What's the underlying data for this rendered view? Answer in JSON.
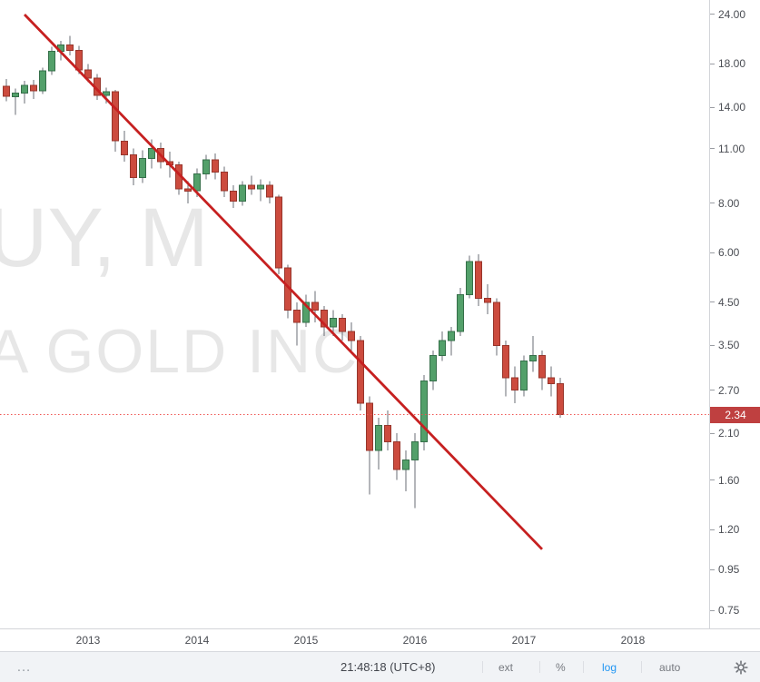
{
  "watermark": {
    "line1": "UY, M",
    "line2": "A GOLD INC"
  },
  "price_axis": {
    "ticks": [
      {
        "label": "24.00",
        "value": 24
      },
      {
        "label": "18.00",
        "value": 18
      },
      {
        "label": "14.00",
        "value": 14
      },
      {
        "label": "11.00",
        "value": 11
      },
      {
        "label": "8.00",
        "value": 8
      },
      {
        "label": "6.00",
        "value": 6
      },
      {
        "label": "4.50",
        "value": 4.5
      },
      {
        "label": "3.50",
        "value": 3.5
      },
      {
        "label": "2.70",
        "value": 2.7
      },
      {
        "label": "2.10",
        "value": 2.1
      },
      {
        "label": "1.60",
        "value": 1.6
      },
      {
        "label": "1.20",
        "value": 1.2
      },
      {
        "label": "0.95",
        "value": 0.95
      },
      {
        "label": "0.75",
        "value": 0.75
      }
    ],
    "last_price": {
      "label": "2.34",
      "value": 2.34
    }
  },
  "time_axis": {
    "labels": [
      {
        "label": "2013",
        "t": "2013-01"
      },
      {
        "label": "2014",
        "t": "2014-01"
      },
      {
        "label": "2015",
        "t": "2015-01"
      },
      {
        "label": "2016",
        "t": "2016-01"
      },
      {
        "label": "2017",
        "t": "2017-01"
      },
      {
        "label": "2018",
        "t": "2018-01"
      }
    ]
  },
  "toolbar": {
    "overflow": "…",
    "clock": "21:48:18 (UTC+8)",
    "ext": "ext",
    "percent": "%",
    "log": "log",
    "auto": "auto",
    "active_scale": "log"
  },
  "colors": {
    "up": "#53a06a",
    "up_border": "#356f49",
    "down": "#cc4b3e",
    "down_border": "#97352b",
    "wick": "#6a6d74",
    "trend": "#c62020",
    "price_line": "#ef5350",
    "tag_bg": "#bf4040",
    "watermark": "#e7e7e7",
    "accent_blue": "#2196f3"
  },
  "chart_data": {
    "type": "candlestick",
    "timeframe": "monthly",
    "scale": "log",
    "ylim": [
      0.7,
      25
    ],
    "y_ticks": [
      24,
      18,
      14,
      11,
      8,
      6,
      4.5,
      3.5,
      2.7,
      2.1,
      1.6,
      1.2,
      0.95,
      0.75
    ],
    "x_labels": [
      "2013",
      "2014",
      "2015",
      "2016",
      "2017",
      "2018"
    ],
    "price_line": 2.34,
    "last_close": 2.34,
    "trendline": {
      "t1": "2012-06",
      "p1": 24.0,
      "t2": "2017-03",
      "p2": 1.07
    },
    "candle_format": [
      "month",
      "open",
      "high",
      "low",
      "close"
    ],
    "candles": [
      [
        "2012-04",
        15.8,
        16.5,
        14.5,
        14.9
      ],
      [
        "2012-05",
        14.9,
        15.6,
        13.4,
        15.2
      ],
      [
        "2012-06",
        15.2,
        16.3,
        14.3,
        15.9
      ],
      [
        "2012-07",
        15.9,
        16.4,
        14.7,
        15.4
      ],
      [
        "2012-08",
        15.4,
        17.6,
        15.1,
        17.3
      ],
      [
        "2012-09",
        17.3,
        19.9,
        16.9,
        19.4
      ],
      [
        "2012-10",
        19.4,
        20.6,
        18.4,
        20.1
      ],
      [
        "2012-11",
        20.1,
        21.2,
        18.9,
        19.5
      ],
      [
        "2012-12",
        19.5,
        20.0,
        17.0,
        17.4
      ],
      [
        "2013-01",
        17.4,
        18.0,
        16.2,
        16.6
      ],
      [
        "2013-02",
        16.6,
        17.0,
        14.6,
        15.0
      ],
      [
        "2013-03",
        15.0,
        15.7,
        14.3,
        15.3
      ],
      [
        "2013-04",
        15.3,
        15.5,
        10.8,
        11.5
      ],
      [
        "2013-05",
        11.5,
        12.2,
        10.2,
        10.6
      ],
      [
        "2013-06",
        10.6,
        11.0,
        8.9,
        9.3
      ],
      [
        "2013-07",
        9.3,
        10.9,
        9.0,
        10.4
      ],
      [
        "2013-08",
        10.4,
        11.6,
        9.8,
        11.0
      ],
      [
        "2013-09",
        11.0,
        11.4,
        9.8,
        10.2
      ],
      [
        "2013-10",
        10.2,
        10.8,
        9.3,
        10.0
      ],
      [
        "2013-11",
        10.0,
        10.2,
        8.4,
        8.7
      ],
      [
        "2013-12",
        8.7,
        9.1,
        8.0,
        8.6
      ],
      [
        "2014-01",
        8.6,
        9.8,
        8.3,
        9.5
      ],
      [
        "2014-02",
        9.5,
        10.6,
        9.2,
        10.3
      ],
      [
        "2014-03",
        10.3,
        10.7,
        9.2,
        9.6
      ],
      [
        "2014-04",
        9.6,
        9.9,
        8.3,
        8.6
      ],
      [
        "2014-05",
        8.6,
        8.9,
        7.8,
        8.1
      ],
      [
        "2014-06",
        8.1,
        9.1,
        7.9,
        8.9
      ],
      [
        "2014-07",
        8.9,
        9.4,
        8.4,
        8.7
      ],
      [
        "2014-08",
        8.7,
        9.2,
        8.1,
        8.9
      ],
      [
        "2014-09",
        8.9,
        9.1,
        8.0,
        8.3
      ],
      [
        "2014-10",
        8.3,
        8.4,
        5.3,
        5.5
      ],
      [
        "2014-11",
        5.5,
        5.6,
        4.1,
        4.3
      ],
      [
        "2014-12",
        4.3,
        4.5,
        3.5,
        4.0
      ],
      [
        "2015-01",
        4.0,
        4.7,
        3.9,
        4.5
      ],
      [
        "2015-02",
        4.5,
        4.8,
        4.0,
        4.3
      ],
      [
        "2015-03",
        4.3,
        4.4,
        3.7,
        3.9
      ],
      [
        "2015-04",
        3.9,
        4.3,
        3.7,
        4.1
      ],
      [
        "2015-05",
        4.1,
        4.2,
        3.6,
        3.8
      ],
      [
        "2015-06",
        3.8,
        4.0,
        3.4,
        3.6
      ],
      [
        "2015-07",
        3.6,
        3.7,
        2.4,
        2.5
      ],
      [
        "2015-08",
        2.5,
        2.6,
        1.47,
        1.9
      ],
      [
        "2015-09",
        1.9,
        2.3,
        1.7,
        2.2
      ],
      [
        "2015-10",
        2.2,
        2.4,
        1.9,
        2.0
      ],
      [
        "2015-11",
        2.0,
        2.1,
        1.6,
        1.7
      ],
      [
        "2015-12",
        1.7,
        1.9,
        1.5,
        1.8
      ],
      [
        "2016-01",
        1.8,
        2.1,
        1.36,
        2.0
      ],
      [
        "2016-02",
        2.0,
        2.95,
        1.9,
        2.85
      ],
      [
        "2016-03",
        2.85,
        3.4,
        2.7,
        3.3
      ],
      [
        "2016-04",
        3.3,
        3.8,
        3.2,
        3.6
      ],
      [
        "2016-05",
        3.6,
        3.9,
        3.3,
        3.8
      ],
      [
        "2016-06",
        3.8,
        4.9,
        3.7,
        4.7
      ],
      [
        "2016-07",
        4.7,
        5.9,
        4.6,
        5.7
      ],
      [
        "2016-08",
        5.7,
        5.95,
        4.4,
        4.6
      ],
      [
        "2016-09",
        4.6,
        5.0,
        4.2,
        4.5
      ],
      [
        "2016-10",
        4.5,
        4.6,
        3.3,
        3.5
      ],
      [
        "2016-11",
        3.5,
        3.6,
        2.6,
        2.9
      ],
      [
        "2016-12",
        2.9,
        3.1,
        2.5,
        2.7
      ],
      [
        "2017-01",
        2.7,
        3.3,
        2.6,
        3.2
      ],
      [
        "2017-02",
        3.2,
        3.7,
        3.0,
        3.3
      ],
      [
        "2017-03",
        3.3,
        3.4,
        2.7,
        2.9
      ],
      [
        "2017-04",
        2.9,
        3.1,
        2.6,
        2.8
      ],
      [
        "2017-05",
        2.8,
        2.9,
        2.3,
        2.34
      ]
    ]
  }
}
